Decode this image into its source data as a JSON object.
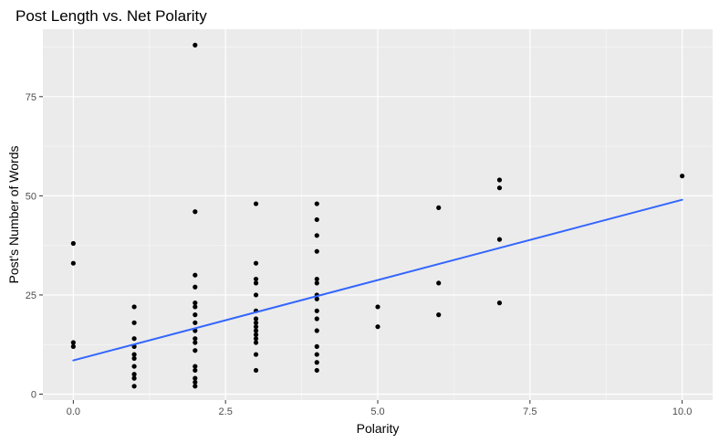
{
  "chart_data": {
    "type": "scatter",
    "title": "Post Length vs. Net Polarity",
    "xlabel": "Polarity",
    "ylabel": "Post's Number of Words",
    "xlim": [
      -0.5,
      10.5
    ],
    "ylim": [
      -1.5,
      92
    ],
    "x_ticks": [
      0.0,
      2.5,
      5.0,
      7.5,
      10.0
    ],
    "x_tick_labels": [
      "0.0",
      "2.5",
      "5.0",
      "7.5",
      "10.0"
    ],
    "y_ticks": [
      0,
      25,
      50,
      75
    ],
    "y_tick_labels": [
      "0",
      "25",
      "50",
      "75"
    ],
    "grid": true,
    "legend": "none",
    "colors": {
      "panel_background": "#ebebeb",
      "grid_major": "#ffffff",
      "grid_minor": "#f5f5f5",
      "points": "#000000",
      "trend_line": "#3366ff",
      "tick_label": "#4d4d4d",
      "tick_mark": "#333333"
    },
    "points": [
      {
        "x": 0,
        "y": 38
      },
      {
        "x": 0,
        "y": 33
      },
      {
        "x": 0,
        "y": 13
      },
      {
        "x": 0,
        "y": 12
      },
      {
        "x": 1,
        "y": 22
      },
      {
        "x": 1,
        "y": 18
      },
      {
        "x": 1,
        "y": 14
      },
      {
        "x": 1,
        "y": 12
      },
      {
        "x": 1,
        "y": 10
      },
      {
        "x": 1,
        "y": 9
      },
      {
        "x": 1,
        "y": 7
      },
      {
        "x": 1,
        "y": 5
      },
      {
        "x": 1,
        "y": 4
      },
      {
        "x": 1,
        "y": 2
      },
      {
        "x": 2,
        "y": 88
      },
      {
        "x": 2,
        "y": 46
      },
      {
        "x": 2,
        "y": 30
      },
      {
        "x": 2,
        "y": 27
      },
      {
        "x": 2,
        "y": 23
      },
      {
        "x": 2,
        "y": 22
      },
      {
        "x": 2,
        "y": 20
      },
      {
        "x": 2,
        "y": 18
      },
      {
        "x": 2,
        "y": 16
      },
      {
        "x": 2,
        "y": 14
      },
      {
        "x": 2,
        "y": 13
      },
      {
        "x": 2,
        "y": 11
      },
      {
        "x": 2,
        "y": 7
      },
      {
        "x": 2,
        "y": 6
      },
      {
        "x": 2,
        "y": 4
      },
      {
        "x": 2,
        "y": 3
      },
      {
        "x": 2,
        "y": 2
      },
      {
        "x": 3,
        "y": 48
      },
      {
        "x": 3,
        "y": 33
      },
      {
        "x": 3,
        "y": 29
      },
      {
        "x": 3,
        "y": 28
      },
      {
        "x": 3,
        "y": 25
      },
      {
        "x": 3,
        "y": 21
      },
      {
        "x": 3,
        "y": 19
      },
      {
        "x": 3,
        "y": 18
      },
      {
        "x": 3,
        "y": 17
      },
      {
        "x": 3,
        "y": 16
      },
      {
        "x": 3,
        "y": 15
      },
      {
        "x": 3,
        "y": 14
      },
      {
        "x": 3,
        "y": 13
      },
      {
        "x": 3,
        "y": 10
      },
      {
        "x": 3,
        "y": 6
      },
      {
        "x": 4,
        "y": 48
      },
      {
        "x": 4,
        "y": 44
      },
      {
        "x": 4,
        "y": 40
      },
      {
        "x": 4,
        "y": 36
      },
      {
        "x": 4,
        "y": 29
      },
      {
        "x": 4,
        "y": 28
      },
      {
        "x": 4,
        "y": 25
      },
      {
        "x": 4,
        "y": 24
      },
      {
        "x": 4,
        "y": 21
      },
      {
        "x": 4,
        "y": 19
      },
      {
        "x": 4,
        "y": 16
      },
      {
        "x": 4,
        "y": 12
      },
      {
        "x": 4,
        "y": 10
      },
      {
        "x": 4,
        "y": 8
      },
      {
        "x": 4,
        "y": 6
      },
      {
        "x": 5,
        "y": 22
      },
      {
        "x": 5,
        "y": 17
      },
      {
        "x": 6,
        "y": 47
      },
      {
        "x": 6,
        "y": 28
      },
      {
        "x": 6,
        "y": 20
      },
      {
        "x": 7,
        "y": 54
      },
      {
        "x": 7,
        "y": 52
      },
      {
        "x": 7,
        "y": 39
      },
      {
        "x": 7,
        "y": 23
      },
      {
        "x": 10,
        "y": 55
      }
    ],
    "trend_line": {
      "x": [
        0,
        10
      ],
      "y": [
        8.5,
        49
      ]
    }
  }
}
